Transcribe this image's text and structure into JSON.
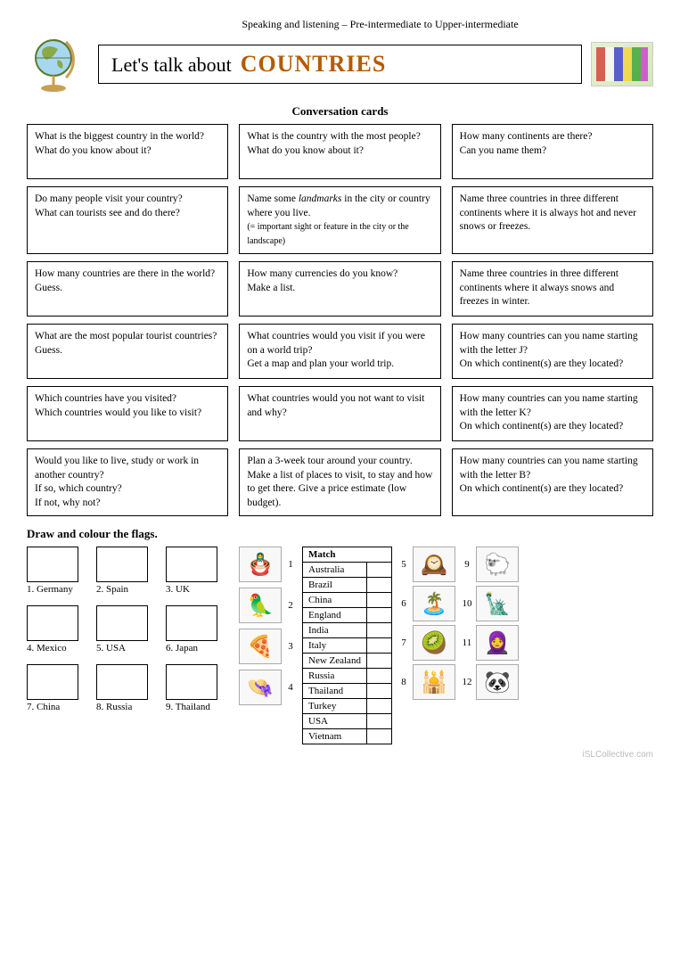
{
  "header": {
    "level": "Speaking and listening – Pre-intermediate to Upper-intermediate",
    "titlePrefix": "Let's talk about",
    "titleAccent": "COUNTRIES"
  },
  "subtitle": "Conversation cards",
  "cards": [
    "What is the biggest country in the world?\nWhat do you know about it?",
    "What is the country with the most people?\nWhat do you know about it?",
    "How many continents are there?\nCan you name them?",
    "Do many people visit your country?\nWhat can tourists see and do there?",
    "Name some landmarks in the city or country where you live.\n(= important sight or feature in the city or the landscape)",
    "Name three countries in three different continents where it is always hot and never snows or freezes.",
    "How many countries are there in the world?\nGuess.",
    "How many currencies do you know?\nMake a list.",
    "Name three countries in three different continents where it always snows and freezes in winter.",
    "What are the most popular tourist countries?\nGuess.",
    "What countries would you visit if you were on a world trip?\nGet a map and plan your world trip.",
    "How many countries can you name starting with the letter J?\nOn which continent(s) are they located?",
    "Which countries have you visited?\nWhich countries would you like to visit?",
    "What countries would you not want to visit and why?",
    "How many countries can you name starting with the letter K?\nOn which continent(s) are they located?",
    "Would you like to live, study or work in another country?\nIf so, which country?\nIf not, why not?",
    "Plan a 3-week tour around your country. Make a list of places to visit, to stay and how to get there. Give a price estimate (low budget).",
    "How many countries can you name starting with the letter B?\nOn which continent(s) are they located?"
  ],
  "flagsSection": {
    "title": "Draw and colour the flags.",
    "items": [
      "1. Germany",
      "2. Spain",
      "3. UK",
      "4. Mexico",
      "5. USA",
      "6. Japan",
      "7. China",
      "8. Russia",
      "9. Thailand"
    ]
  },
  "match": {
    "title": "Match",
    "countries": [
      "Australia",
      "Brazil",
      "China",
      "England",
      "India",
      "Italy",
      "New Zealand",
      "Russia",
      "Thailand",
      "Turkey",
      "USA",
      "Vietnam"
    ],
    "picsLeft": [
      {
        "num": "1",
        "icon": "🪆"
      },
      {
        "num": "2",
        "icon": "🦜"
      },
      {
        "num": "3",
        "icon": "🍕"
      },
      {
        "num": "4",
        "icon": "👒"
      }
    ],
    "picsRight": [
      {
        "num": "5",
        "icon": "🕰️"
      },
      {
        "num": "6",
        "icon": "🏝️"
      },
      {
        "num": "7",
        "icon": "🥝"
      },
      {
        "num": "8",
        "icon": "🕌"
      },
      {
        "num": "9",
        "icon": "🐑"
      },
      {
        "num": "10",
        "icon": "🗽"
      },
      {
        "num": "11",
        "icon": "🧕"
      },
      {
        "num": "12",
        "icon": "🐼"
      }
    ]
  },
  "watermark": "iSLCollective.com"
}
